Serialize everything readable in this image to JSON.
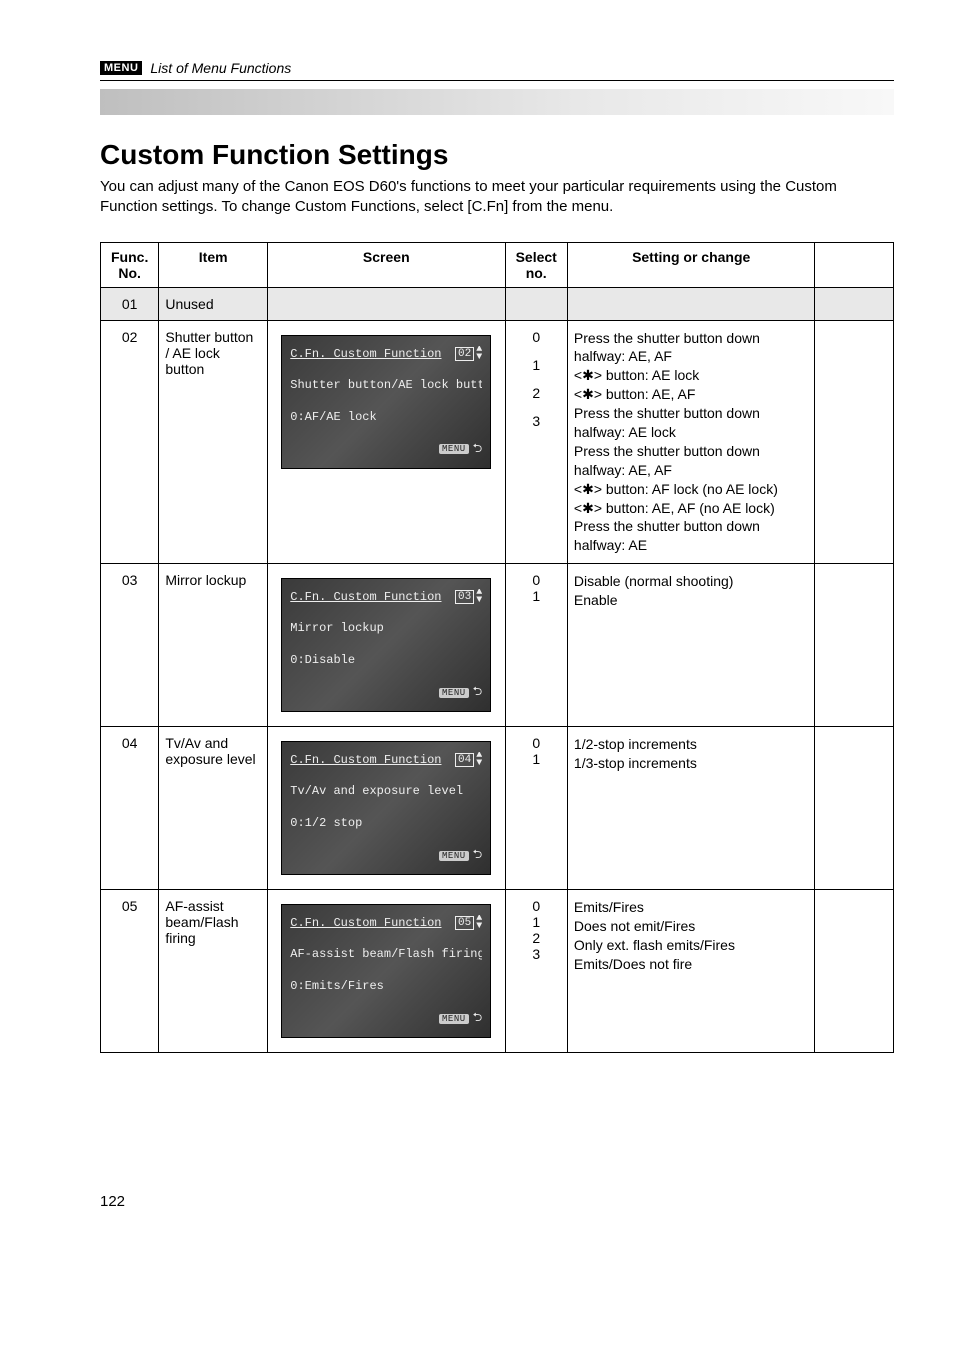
{
  "header": {
    "menu_badge": "MENU",
    "breadcrumb": "List of Menu Functions"
  },
  "title": "Custom Function Settings",
  "intro": "You can adjust many of the Canon EOS D60's functions to meet your particular requirements using the Custom Function settings. To change Custom Functions, select [C.Fn] from the menu.",
  "columns": {
    "func": "Func. No.",
    "item": "Item",
    "screen": "Screen",
    "select": "Select no.",
    "setting": "Setting or change"
  },
  "rows": {
    "r01": {
      "func": "01",
      "item": "Unused"
    },
    "r02": {
      "func": "02",
      "item": "Shutter button / AE lock button",
      "screen": {
        "label": "C.Fn. Custom Function",
        "num": "02",
        "line2": "Shutter button/AE lock button",
        "line3": "0:AF/AE lock",
        "menu": "MENU"
      },
      "select": {
        "a": "0",
        "b": "1",
        "c": "2",
        "d": "3"
      },
      "setting": {
        "l1": "Press the shutter button down halfway: AE, AF",
        "l2": "<✱> button: AE lock",
        "l3": "<✱> button: AE, AF",
        "l4": "Press the shutter button down halfway: AE lock",
        "l5": "Press the shutter button down halfway: AE, AF",
        "l6": "<✱> button: AF lock (no AE lock)",
        "l7": "<✱> button: AE, AF (no AE lock)",
        "l8": "Press the shutter button down halfway: AE"
      }
    },
    "r03": {
      "func": "03",
      "item": "Mirror lockup",
      "screen": {
        "label": "C.Fn. Custom Function",
        "num": "03",
        "line2": "Mirror lockup",
        "line3": "0:Disable",
        "menu": "MENU"
      },
      "select": {
        "a": "0",
        "b": "1"
      },
      "setting": {
        "l1": "Disable (normal shooting)",
        "l2": "Enable"
      }
    },
    "r04": {
      "func": "04",
      "item": "Tv/Av and exposure level",
      "screen": {
        "label": "C.Fn. Custom Function",
        "num": "04",
        "line2": "Tv/Av and exposure level",
        "line3": "0:1/2 stop",
        "menu": "MENU"
      },
      "select": {
        "a": "0",
        "b": "1"
      },
      "setting": {
        "l1": "1/2-stop increments",
        "l2": "1/3-stop increments"
      }
    },
    "r05": {
      "func": "05",
      "item": "AF-assist beam/Flash firing",
      "screen": {
        "label": "C.Fn. Custom Function",
        "num": "05",
        "line2": "AF-assist beam/Flash firing",
        "line3": "0:Emits/Fires",
        "menu": "MENU"
      },
      "select": {
        "a": "0",
        "b": "1",
        "c": "2",
        "d": "3"
      },
      "setting": {
        "l1": "Emits/Fires",
        "l2": "Does not emit/Fires",
        "l3": "Only ext. flash emits/Fires",
        "l4": "Emits/Does not fire"
      }
    }
  },
  "page_number": "122",
  "colors": {
    "text": "#000000",
    "bg": "#ffffff",
    "shade": "#e8e8e8",
    "lcd_bg": "#3a3a3a",
    "lcd_text": "#eeeeee"
  }
}
